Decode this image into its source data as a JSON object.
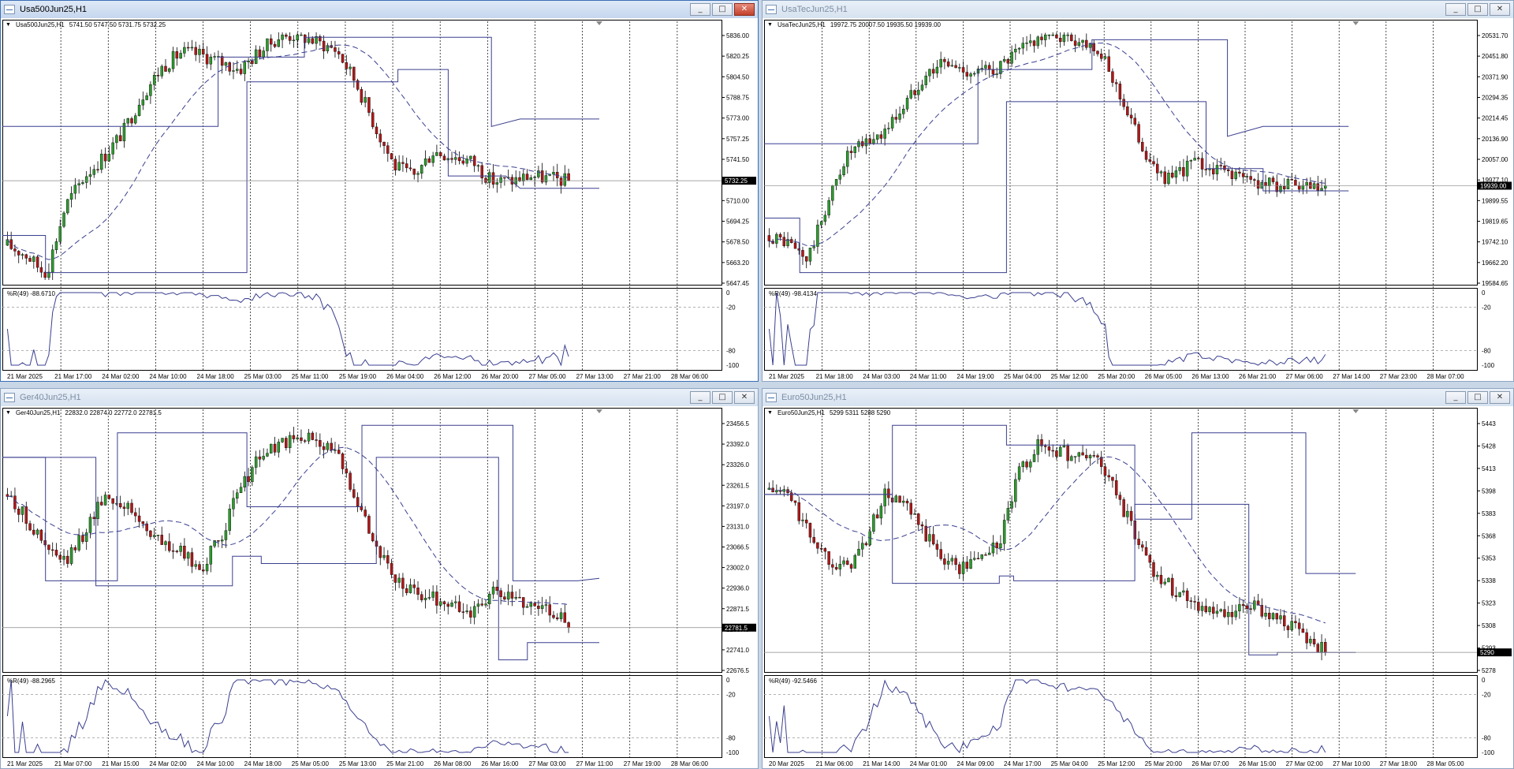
{
  "windows": [
    {
      "id": "w1",
      "title": "Usa500Jun25,H1",
      "active": true,
      "info": {
        "symbol": "Usa500Jun25,H1",
        "ohlc": "5741.50 5747.50 5731.75 5732.25"
      },
      "price_labels": [
        "5836.00",
        "5820.25",
        "5804.50",
        "5788.75",
        "5773.00",
        "5757.25",
        "5741.50",
        "5725.75",
        "5710.00",
        "5694.25",
        "5678.50",
        "5663.20",
        "5647.45"
      ],
      "current_price": "5732.25",
      "indicator": {
        "label": "%R(49) -88.6710",
        "levels": [
          "0",
          "-20",
          "-80",
          "-100"
        ]
      },
      "time_labels": [
        "21 Mar 2025",
        "21 Mar 17:00",
        "24 Mar 02:00",
        "24 Mar 10:00",
        "24 Mar 18:00",
        "25 Mar 03:00",
        "25 Mar 11:00",
        "25 Mar 19:00",
        "26 Mar 04:00",
        "26 Mar 12:00",
        "26 Mar 20:00",
        "27 Mar 05:00",
        "27 Mar 13:00",
        "27 Mar 21:00",
        "28 Mar 06:00"
      ]
    },
    {
      "id": "w2",
      "title": "UsaTecJun25,H1",
      "active": false,
      "info": {
        "symbol": "UsaTecJun25,H1",
        "ohlc": "19972.75 20007.50 19935.50 19939.00"
      },
      "price_labels": [
        "20531.70",
        "20451.80",
        "20371.90",
        "20294.35",
        "20214.45",
        "20136.90",
        "20057.00",
        "19977.10",
        "19899.55",
        "19819.65",
        "19742.10",
        "19662.20",
        "19584.65"
      ],
      "current_price": "19939.00",
      "indicator": {
        "label": "%R(49) -98.4134",
        "levels": [
          "0",
          "-20",
          "-80",
          "-100"
        ]
      },
      "time_labels": [
        "21 Mar 2025",
        "21 Mar 18:00",
        "24 Mar 03:00",
        "24 Mar 11:00",
        "24 Mar 19:00",
        "25 Mar 04:00",
        "25 Mar 12:00",
        "25 Mar 20:00",
        "26 Mar 05:00",
        "26 Mar 13:00",
        "26 Mar 21:00",
        "27 Mar 06:00",
        "27 Mar 14:00",
        "27 Mar 23:00",
        "28 Mar 07:00"
      ]
    },
    {
      "id": "w3",
      "title": "Ger40Jun25,H1",
      "active": false,
      "info": {
        "symbol": "Ger40Jun25,H1",
        "ohlc": "22832.0 22874.0 22772.0 22781.5"
      },
      "price_labels": [
        "23456.5",
        "23392.0",
        "23326.0",
        "23261.5",
        "23197.0",
        "23131.0",
        "23066.5",
        "23002.0",
        "22936.0",
        "22871.5",
        "22807.0",
        "22741.0",
        "22676.5"
      ],
      "current_price": "22781.5",
      "indicator": {
        "label": "%R(49) -88.2965",
        "levels": [
          "0",
          "-20",
          "-80",
          "-100"
        ]
      },
      "time_labels": [
        "21 Mar 2025",
        "21 Mar 07:00",
        "21 Mar 15:00",
        "24 Mar 02:00",
        "24 Mar 10:00",
        "24 Mar 18:00",
        "25 Mar 05:00",
        "25 Mar 13:00",
        "25 Mar 21:00",
        "26 Mar 08:00",
        "26 Mar 16:00",
        "27 Mar 03:00",
        "27 Mar 11:00",
        "27 Mar 19:00",
        "28 Mar 06:00"
      ]
    },
    {
      "id": "w4",
      "title": "Euro50Jun25,H1",
      "active": false,
      "info": {
        "symbol": "Euro50Jun25,H1",
        "ohlc": "5299 5311 5288 5290"
      },
      "price_labels": [
        "5443",
        "5428",
        "5413",
        "5398",
        "5383",
        "5368",
        "5353",
        "5338",
        "5323",
        "5308",
        "5293",
        "5278"
      ],
      "current_price": "5290",
      "indicator": {
        "label": "%R(49) -92.5466",
        "levels": [
          "0",
          "-20",
          "-80",
          "-100"
        ]
      },
      "time_labels": [
        "20 Mar 2025",
        "21 Mar 06:00",
        "21 Mar 14:00",
        "24 Mar 01:00",
        "24 Mar 09:00",
        "24 Mar 17:00",
        "25 Mar 04:00",
        "25 Mar 12:00",
        "25 Mar 20:00",
        "26 Mar 07:00",
        "26 Mar 15:00",
        "27 Mar 02:00",
        "27 Mar 10:00",
        "27 Mar 18:00",
        "28 Mar 05:00"
      ]
    }
  ],
  "colors": {
    "bull": "#2e9a2e",
    "bear": "#b01818",
    "line": "#3a3f8f",
    "grid": "#000000",
    "title_active": "#3b6fb6"
  },
  "icons": {
    "minimize": "_",
    "maximize": "□",
    "close": "✕",
    "dropdown": "▼"
  }
}
